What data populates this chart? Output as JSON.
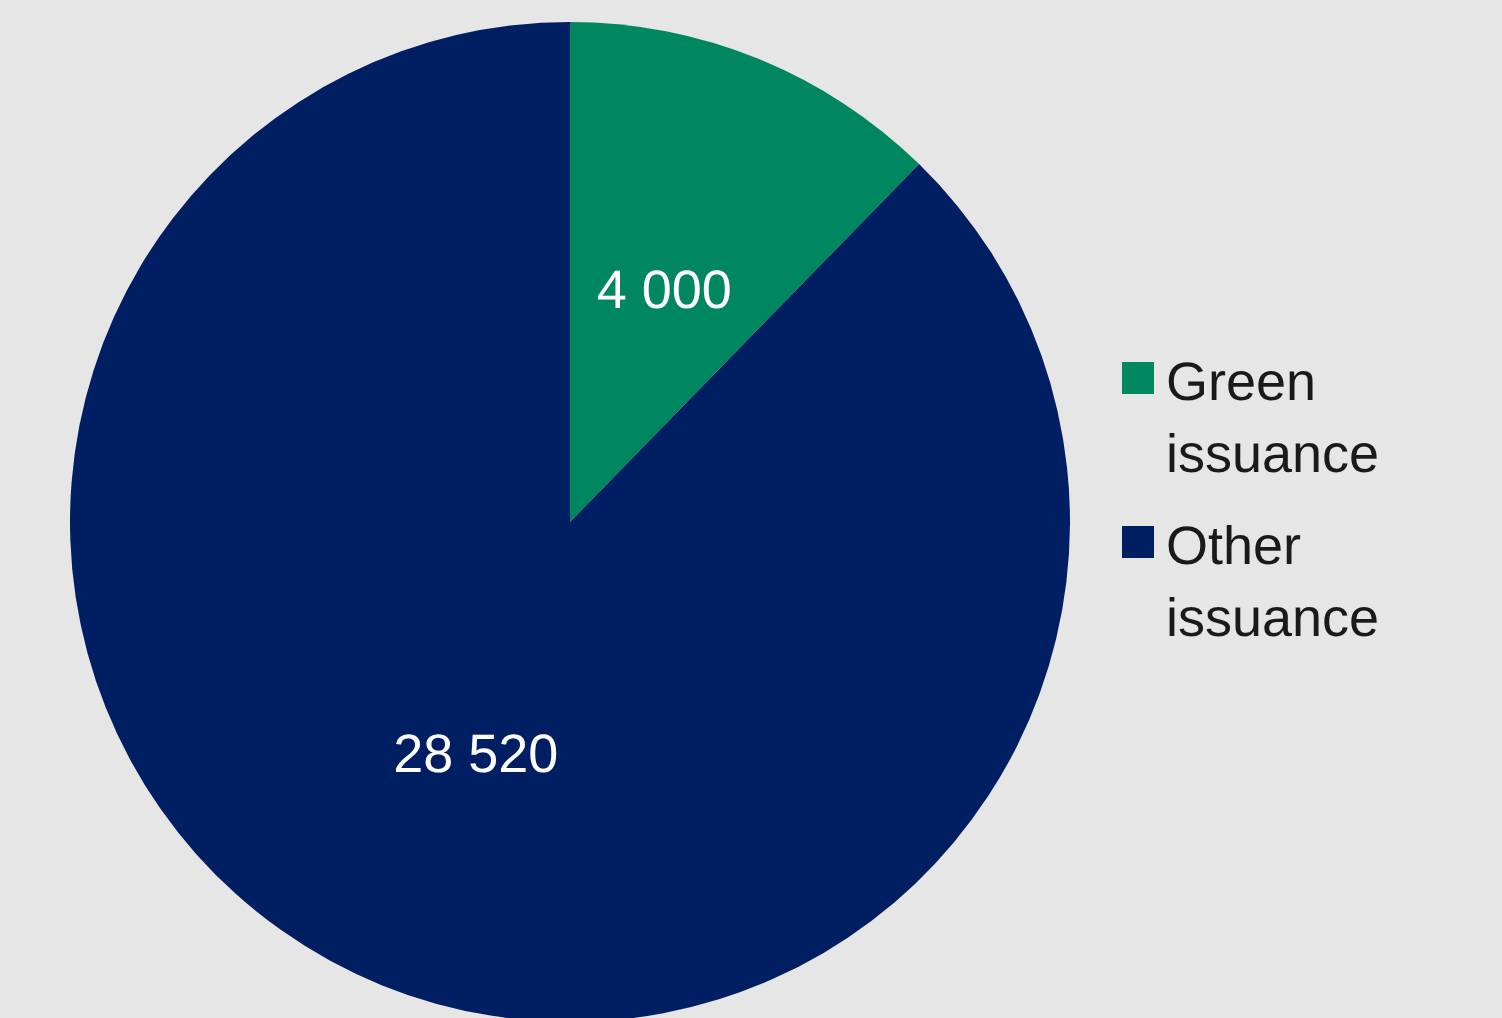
{
  "chart_data": {
    "type": "pie",
    "categories": [
      "Green issuance",
      "Other issuance"
    ],
    "values": [
      4000,
      28520
    ],
    "colors": [
      "#00875f",
      "#001f63"
    ],
    "value_labels": [
      "4 000",
      "28 520"
    ],
    "legend": "right"
  }
}
